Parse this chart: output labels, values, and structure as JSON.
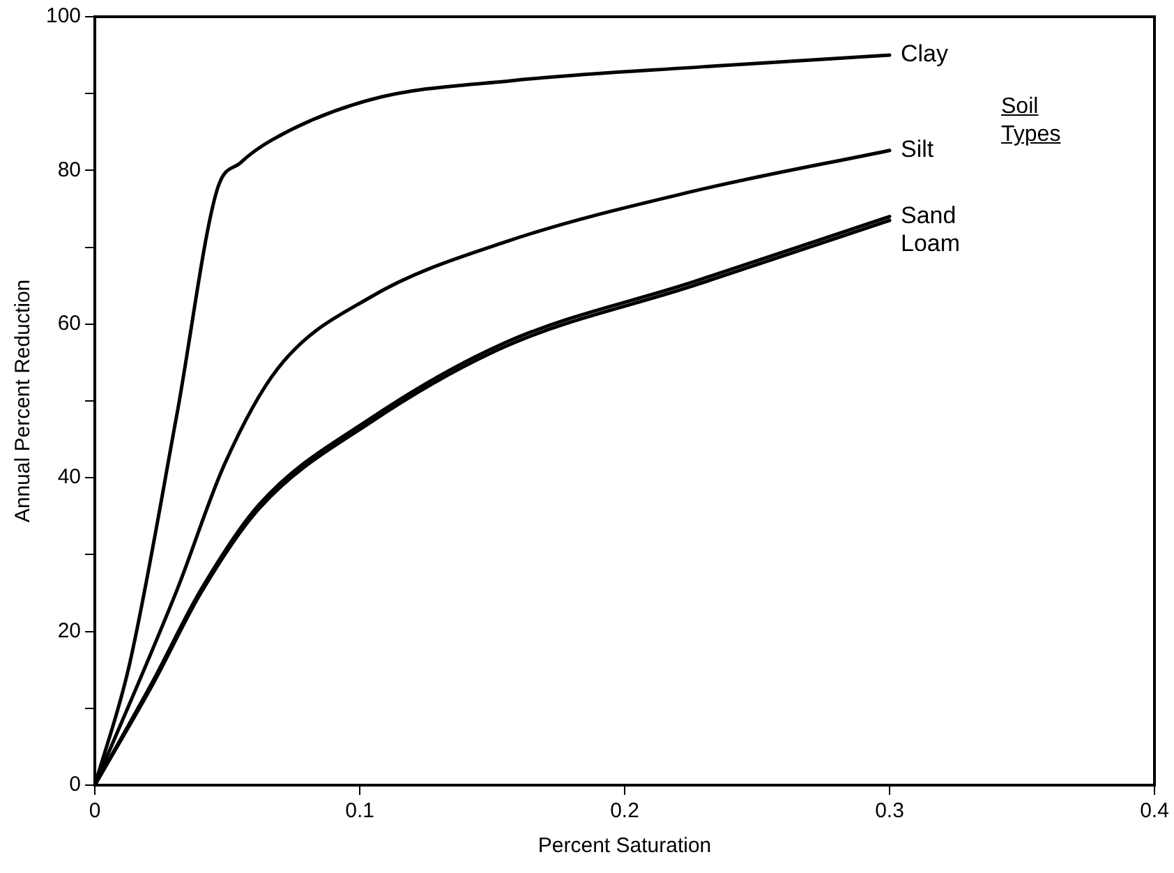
{
  "chart_data": {
    "type": "line",
    "xlabel": "Percent Saturation",
    "ylabel": "Annual Percent Reduction",
    "legend_title": "Soil Types",
    "xlim": [
      0,
      0.4
    ],
    "xticks": [
      0,
      0.1,
      0.2,
      0.3,
      0.4
    ],
    "ylim": [
      0,
      100
    ],
    "yticks": [
      0,
      {
        "value": 10,
        "label": null
      },
      20,
      {
        "value": 30,
        "label": null
      },
      40,
      {
        "value": 50,
        "label": null
      },
      60,
      {
        "value": 70,
        "label": null
      },
      80,
      {
        "value": 90,
        "label": null
      },
      100
    ],
    "grid": false,
    "legend": false,
    "marker": "none",
    "line_style": "solid",
    "series": [
      {
        "name": "Clay",
        "color": "#000000",
        "x": [
          0,
          0.013,
          0.031,
          0.046,
          0.055,
          0.067,
          0.104,
          0.158,
          0.23,
          0.3
        ],
        "values": [
          0,
          15.6,
          48.3,
          77.3,
          81,
          84,
          89.2,
          91.7,
          93.5,
          95
        ]
      },
      {
        "name": "Silt",
        "color": "#000000",
        "x": [
          0,
          0.031,
          0.049,
          0.069,
          0.104,
          0.155,
          0.226,
          0.3
        ],
        "values": [
          0,
          25.4,
          41.8,
          54.2,
          63.5,
          70.7,
          77.3,
          82.6
        ]
      },
      {
        "name": "Sand",
        "color": "#000000",
        "x": [
          0,
          0.022,
          0.04,
          0.062,
          0.104,
          0.155,
          0.226,
          0.3
        ],
        "values": [
          0,
          13.6,
          25.4,
          36.5,
          47.7,
          57.6,
          65.5,
          74
        ]
      },
      {
        "name": "Loam",
        "color": "#000000",
        "x": [
          0,
          0.022,
          0.04,
          0.062,
          0.104,
          0.155,
          0.226,
          0.3
        ],
        "values": [
          0,
          13.2,
          25,
          36,
          47.2,
          57.1,
          65,
          73.5
        ]
      }
    ]
  }
}
